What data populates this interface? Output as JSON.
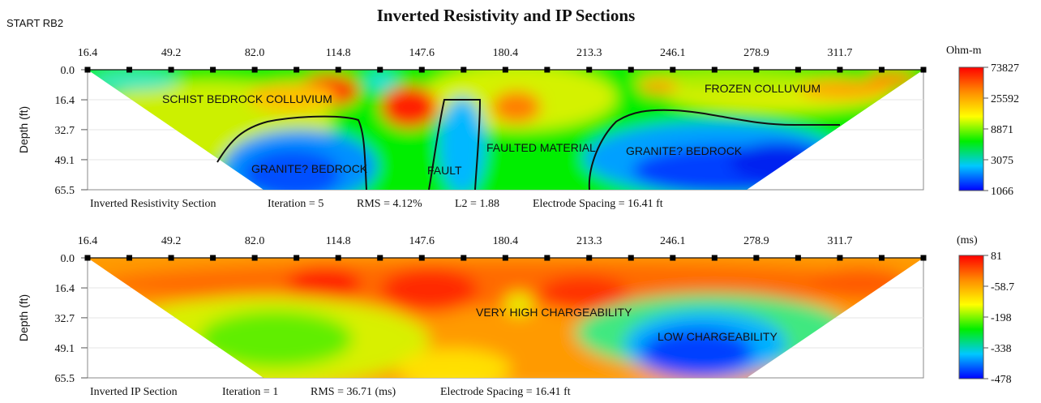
{
  "header": {
    "corner_label": "START RB2",
    "title": "Inverted Resistivity and IP Sections"
  },
  "chart_data": [
    {
      "type": "heatmap",
      "title": "",
      "x_ticks": [
        "16.4",
        "49.2",
        "82.0",
        "114.8",
        "147.6",
        "180.4",
        "213.3",
        "246.1",
        "278.9",
        "311.7"
      ],
      "x_range": [
        16.4,
        344.5
      ],
      "y_ticks": [
        "0.0",
        "16.4",
        "32.7",
        "49.1",
        "65.5"
      ],
      "y_range": [
        0,
        65.5
      ],
      "ylabel": "Depth (ft)",
      "electrode_positions": [
        16.4,
        49.2,
        82.0,
        114.8,
        147.6,
        180.4,
        213.3,
        246.1,
        278.9,
        311.7,
        344.5
      ],
      "colorbar": {
        "unit": "Ohm-m",
        "labels": [
          "73827",
          "25592",
          "8871",
          "3075",
          "1066"
        ],
        "scale": "log",
        "colors": [
          "#ff0000",
          "#ff8c00",
          "#ffff00",
          "#00ee00",
          "#00c8ff",
          "#0000ff"
        ]
      },
      "annotations": [
        "SCHIST BEDROCK COLLUVIUM",
        "FROZEN COLLUVIUM",
        "FAULTED MATERIAL",
        "GRANITE? BEDROCK",
        "FAULT",
        "GRANITE? BEDROCK"
      ],
      "footer": {
        "section": "Inverted Resistivity Section",
        "iteration": "Iteration = 5",
        "rms": "RMS = 4.12%",
        "l2": "L2 = 1.88",
        "spacing": "Electrode Spacing = 16.41 ft"
      }
    },
    {
      "type": "heatmap",
      "title": "",
      "x_ticks": [
        "16.4",
        "49.2",
        "82.0",
        "114.8",
        "147.6",
        "180.4",
        "213.3",
        "246.1",
        "278.9",
        "311.7"
      ],
      "x_range": [
        16.4,
        344.5
      ],
      "y_ticks": [
        "0.0",
        "16.4",
        "32.7",
        "49.1",
        "65.5"
      ],
      "y_range": [
        0,
        65.5
      ],
      "ylabel": "Depth (ft)",
      "electrode_positions": [
        16.4,
        49.2,
        82.0,
        114.8,
        147.6,
        180.4,
        213.3,
        246.1,
        278.9,
        311.7,
        344.5
      ],
      "colorbar": {
        "unit": "(ms)",
        "labels": [
          "81",
          "-58.7",
          "-198",
          "-338",
          "-478"
        ],
        "scale": "linear",
        "colors": [
          "#ff0000",
          "#ff8c00",
          "#ffff00",
          "#00ee00",
          "#00c8ff",
          "#0000ff"
        ]
      },
      "annotations": [
        "VERY HIGH CHARGEABILITY",
        "LOW CHARGEABILITY"
      ],
      "footer": {
        "section": "Inverted IP Section",
        "iteration": "Iteration = 1",
        "rms": "RMS = 36.71 (ms)",
        "spacing": "Electrode Spacing = 16.41 ft"
      }
    }
  ]
}
